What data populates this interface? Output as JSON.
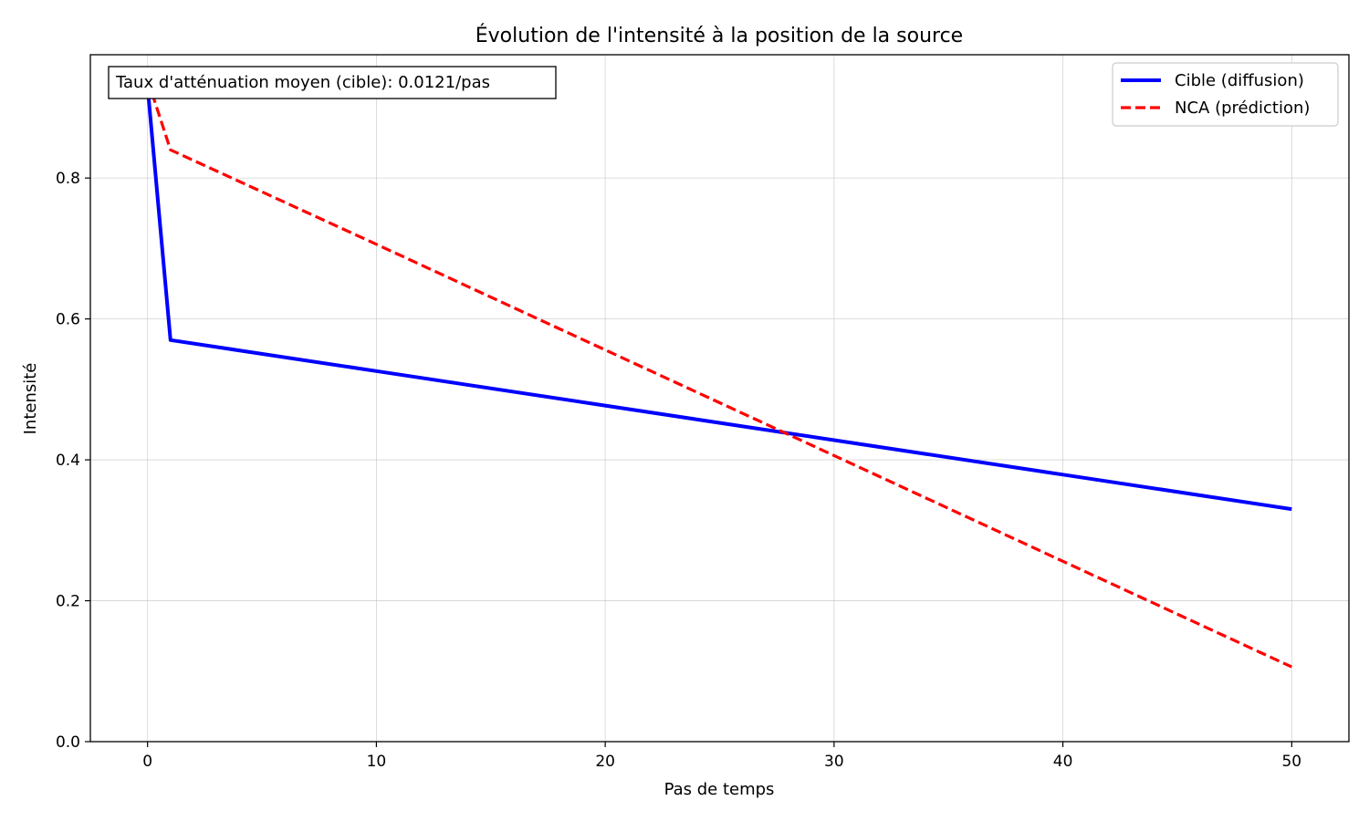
{
  "chart_data": {
    "type": "line",
    "title": "Évolution de l'intensité à la position de la source",
    "xlabel": "Pas de temps",
    "ylabel": "Intensité",
    "xlim": [
      -2.5,
      52.5
    ],
    "ylim": [
      0,
      0.975
    ],
    "xticks": [
      0,
      10,
      20,
      30,
      40,
      50
    ],
    "yticks": [
      0.0,
      0.2,
      0.4,
      0.6,
      0.8
    ],
    "xtick_labels": [
      "0",
      "10",
      "20",
      "30",
      "40",
      "50"
    ],
    "ytick_labels": [
      "0.0",
      "0.2",
      "0.4",
      "0.6",
      "0.8"
    ],
    "grid": true,
    "legend_position": "top-right",
    "annotation": "Taux d'atténuation moyen (cible): 0.0121/pas",
    "series": [
      {
        "name": "Cible (diffusion)",
        "color": "#0000ff",
        "style": "solid",
        "x": [
          0,
          1,
          10,
          20,
          30,
          40,
          50
        ],
        "y": [
          0.93,
          0.57,
          0.526,
          0.477,
          0.428,
          0.379,
          0.33
        ]
      },
      {
        "name": "NCA (prédiction)",
        "color": "#ff0000",
        "style": "dashed",
        "x": [
          0,
          1,
          10,
          20,
          30,
          40,
          50
        ],
        "y": [
          0.94,
          0.84,
          0.706,
          0.556,
          0.406,
          0.256,
          0.106
        ]
      }
    ]
  }
}
